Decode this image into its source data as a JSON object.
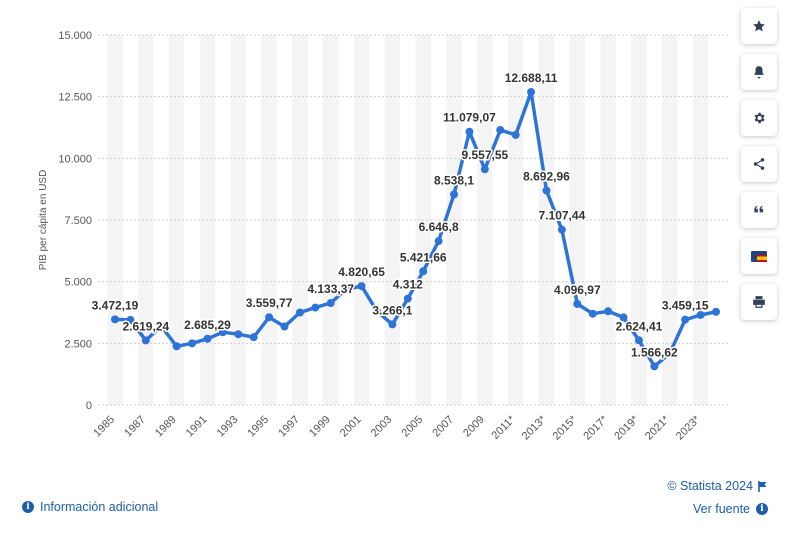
{
  "chart_data": {
    "type": "line",
    "ylabel": "PIB per cápita en USD",
    "ylim": [
      0,
      15000
    ],
    "y_ticks": [
      0,
      2500,
      5000,
      7500,
      10000,
      12500,
      15000
    ],
    "y_tick_labels": [
      "0",
      "2.500",
      "5.000",
      "7.500",
      "10.000",
      "12.500",
      "15.000"
    ],
    "x_tick_labels": [
      "1985",
      "1987",
      "1989",
      "1991",
      "1993",
      "1995",
      "1997",
      "1999",
      "2001",
      "2003",
      "2005",
      "2007",
      "2009",
      "2011*",
      "2013*",
      "2015*",
      "2017*",
      "2019*",
      "2021*",
      "2023*"
    ],
    "x": [
      1985,
      1986,
      1987,
      1988,
      1989,
      1990,
      1991,
      1992,
      1993,
      1994,
      1995,
      1996,
      1997,
      1998,
      1999,
      2000,
      2001,
      2002,
      2003,
      2004,
      2005,
      2006,
      2007,
      2008,
      2009,
      2010,
      2011,
      2012,
      2013,
      2014,
      2015,
      2016,
      2017,
      2018,
      2019,
      2020,
      2021,
      2022,
      2023,
      2024
    ],
    "values": [
      3472.19,
      3450,
      2619.24,
      3200,
      2380,
      2500,
      2685.29,
      2950,
      2870,
      2750,
      3559.77,
      3180,
      3750,
      3950,
      4133.37,
      4700,
      4820.65,
      3800,
      3266.1,
      4312,
      5421.66,
      6646.8,
      8538.1,
      11079.07,
      9557.55,
      11150,
      10950,
      12688.11,
      8692.96,
      7107.44,
      4096.97,
      3700,
      3800,
      3550,
      2624.41,
      1566.62,
      2100,
      3459.15,
      3650,
      3780
    ],
    "data_labels": [
      {
        "year": 1985,
        "text": "3.472,19"
      },
      {
        "year": 1987,
        "text": "2.619,24"
      },
      {
        "year": 1991,
        "text": "2.685,29"
      },
      {
        "year": 1995,
        "text": "3.559,77"
      },
      {
        "year": 1999,
        "text": "4.133,37"
      },
      {
        "year": 2001,
        "text": "4.820,65"
      },
      {
        "year": 2003,
        "text": "3.266,1"
      },
      {
        "year": 2004,
        "text": "4.312"
      },
      {
        "year": 2005,
        "text": "5.421,66"
      },
      {
        "year": 2006,
        "text": "6.646,8"
      },
      {
        "year": 2007,
        "text": "8.538,1"
      },
      {
        "year": 2008,
        "text": "11.079,07"
      },
      {
        "year": 2009,
        "text": "9.557,55"
      },
      {
        "year": 2012,
        "text": "12.688,11"
      },
      {
        "year": 2013,
        "text": "8.692,96"
      },
      {
        "year": 2014,
        "text": "7.107,44"
      },
      {
        "year": 2015,
        "text": "4.096,97"
      },
      {
        "year": 2019,
        "text": "2.624,41"
      },
      {
        "year": 2020,
        "text": "1.566,62"
      },
      {
        "year": 2022,
        "text": "3.459,15"
      }
    ],
    "grid": true,
    "line_color": "#2e74d6",
    "band_color": "#f4f4f4"
  },
  "toolbar": {
    "icons": [
      "star-icon",
      "bell-icon",
      "gear-icon",
      "share-icon",
      "quote-icon",
      "flag-icon",
      "print-icon"
    ]
  },
  "footer": {
    "info_label": "Información adicional",
    "credit": "© Statista 2024",
    "source_label": "Ver fuente"
  },
  "colors": {
    "link": "#1c5fa8",
    "line": "#2e74d6"
  }
}
